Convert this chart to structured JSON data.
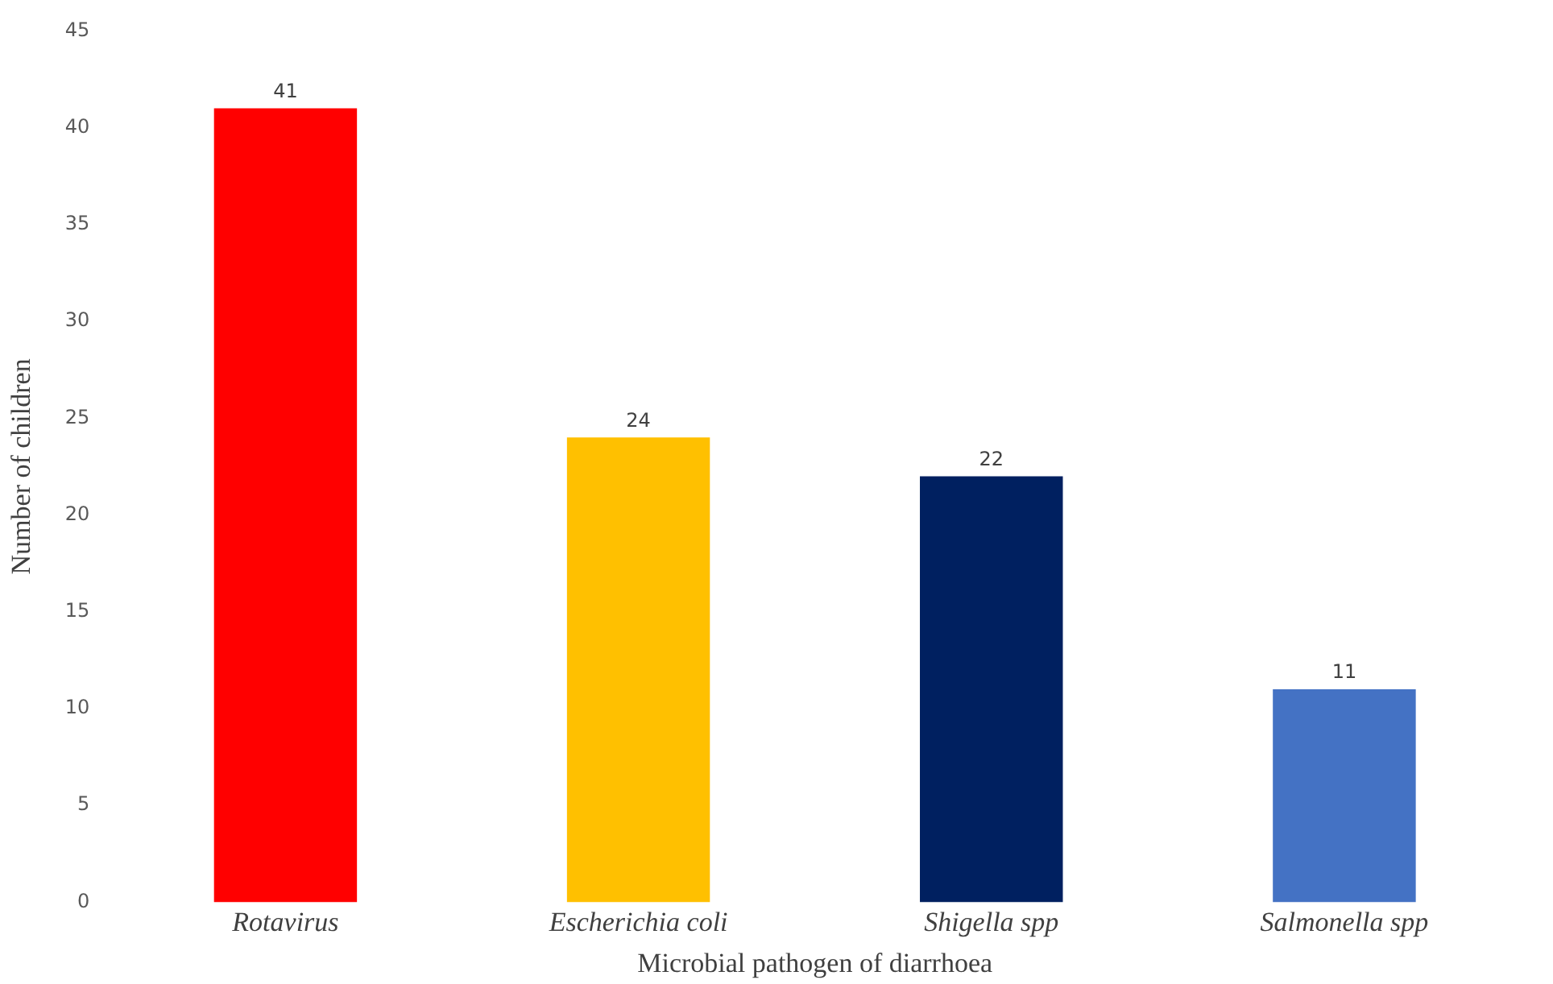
{
  "chart_data": {
    "type": "bar",
    "xlabel": "Microbial pathogen of diarrhoea",
    "ylabel": "Number of children",
    "categories": [
      "Rotavirus",
      "Escherichia coli",
      "Shigella spp",
      "Salmonella spp"
    ],
    "values": [
      41,
      24,
      22,
      11
    ],
    "colors": [
      "#ff0000",
      "#ffc000",
      "#002060",
      "#4472c4"
    ],
    "ylim": [
      0,
      45
    ],
    "yticks": [
      0,
      5,
      10,
      15,
      20,
      25,
      30,
      35,
      40,
      45
    ],
    "grid": false,
    "data_labels": true
  }
}
